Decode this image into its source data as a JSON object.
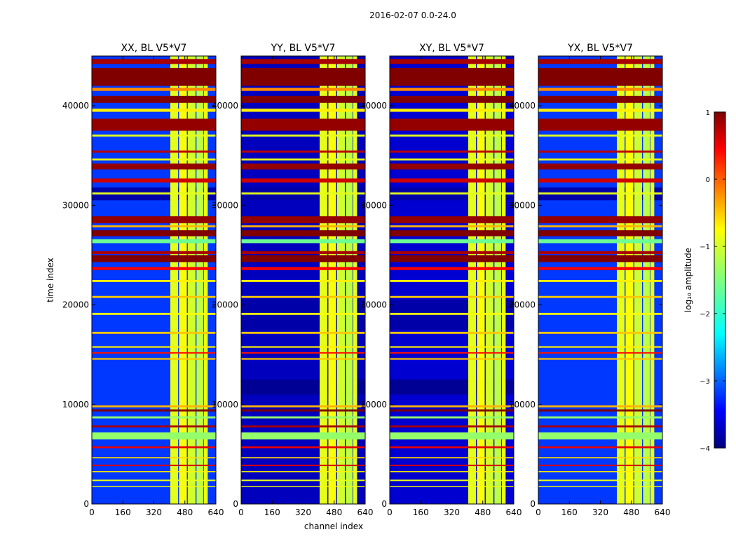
{
  "chart_data": {
    "type": "heatmap",
    "suptitle": "2016-02-07 0.0-24.0",
    "xlabel": "channel index",
    "ylabel": "time index",
    "xlim": [
      0,
      640
    ],
    "ylim": [
      0,
      45000
    ],
    "xticks": [
      0,
      160,
      320,
      480,
      640
    ],
    "yticks": [
      0,
      10000,
      20000,
      30000,
      40000
    ],
    "colorbar": {
      "label": "log₁₀ amplitude",
      "range": [
        -4,
        1
      ],
      "ticks": [
        1,
        0,
        -1,
        -2,
        -3,
        -4
      ],
      "tick_labels": [
        "1",
        "0",
        "−1",
        "−2",
        "−3",
        "−4"
      ],
      "colormap": "jet"
    },
    "panels": [
      {
        "title": "XX, BL V5*V7",
        "background_log_amp": -3.1
      },
      {
        "title": "YY, BL V5*V7",
        "background_log_amp": -3.7
      },
      {
        "title": "XY, BL V5*V7",
        "background_log_amp": -3.6
      },
      {
        "title": "YX, BL V5*V7",
        "background_log_amp": -3.1
      }
    ],
    "signal_channel_band": [
      405,
      600
    ],
    "signal_channel_columns": [
      {
        "start": 405,
        "end": 445,
        "log_amp": -1.0
      },
      {
        "start": 450,
        "end": 490,
        "log_amp": -0.9
      },
      {
        "start": 495,
        "end": 535,
        "log_amp": -1.1
      },
      {
        "start": 540,
        "end": 575,
        "log_amp": -1.2
      },
      {
        "start": 578,
        "end": 598,
        "log_amp": -1.0
      }
    ],
    "flagged_time_bands": [
      {
        "start": 44200,
        "end": 44700,
        "log_amp": 0.8
      },
      {
        "start": 42000,
        "end": 43800,
        "log_amp": 1.0
      },
      {
        "start": 41500,
        "end": 41800,
        "log_amp": -0.3
      },
      {
        "start": 40300,
        "end": 41000,
        "log_amp": 1.0
      },
      {
        "start": 39400,
        "end": 39700,
        "log_amp": -0.8
      },
      {
        "start": 37500,
        "end": 38700,
        "log_amp": 0.9
      },
      {
        "start": 36900,
        "end": 37100,
        "log_amp": -1.0
      },
      {
        "start": 35300,
        "end": 35500,
        "log_amp": 0.7
      },
      {
        "start": 34500,
        "end": 34700,
        "log_amp": -1.0
      },
      {
        "start": 33600,
        "end": 34200,
        "log_amp": 0.9
      },
      {
        "start": 32300,
        "end": 32700,
        "log_amp": 0.6
      },
      {
        "start": 31100,
        "end": 31300,
        "log_amp": -1.0
      },
      {
        "start": 28200,
        "end": 28900,
        "log_amp": 0.9
      },
      {
        "start": 27800,
        "end": 28000,
        "log_amp": -0.5
      },
      {
        "start": 26900,
        "end": 27500,
        "log_amp": 1.0
      },
      {
        "start": 26200,
        "end": 26600,
        "log_amp": -1.6
      },
      {
        "start": 25100,
        "end": 25400,
        "log_amp": 0.8
      },
      {
        "start": 24300,
        "end": 25000,
        "log_amp": 1.0
      },
      {
        "start": 23500,
        "end": 23800,
        "log_amp": 0.4
      },
      {
        "start": 22300,
        "end": 22500,
        "log_amp": -0.8
      },
      {
        "start": 20700,
        "end": 20900,
        "log_amp": -0.6
      },
      {
        "start": 19000,
        "end": 19200,
        "log_amp": -0.9
      },
      {
        "start": 17100,
        "end": 17300,
        "log_amp": -0.6
      },
      {
        "start": 15700,
        "end": 15850,
        "log_amp": -0.8
      },
      {
        "start": 15100,
        "end": 15250,
        "log_amp": 0.3
      },
      {
        "start": 14500,
        "end": 14650,
        "log_amp": -0.6
      },
      {
        "start": 9700,
        "end": 9900,
        "log_amp": -0.5
      },
      {
        "start": 9300,
        "end": 9500,
        "log_amp": 1.0
      },
      {
        "start": 8600,
        "end": 8800,
        "log_amp": -1.4
      },
      {
        "start": 7700,
        "end": 7900,
        "log_amp": 0.8
      },
      {
        "start": 6500,
        "end": 7200,
        "log_amp": -1.4
      },
      {
        "start": 5600,
        "end": 5800,
        "log_amp": 0.5
      },
      {
        "start": 4600,
        "end": 4700,
        "log_amp": -0.7
      },
      {
        "start": 3800,
        "end": 3950,
        "log_amp": 0.6
      },
      {
        "start": 3200,
        "end": 3300,
        "log_amp": -0.8
      },
      {
        "start": 2300,
        "end": 2450,
        "log_amp": -1.0
      },
      {
        "start": 1700,
        "end": 1800,
        "log_amp": -0.9
      }
    ],
    "quiet_time_bands": [
      {
        "start": 11000,
        "end": 12500,
        "log_amp": -3.9,
        "panels": [
          1,
          2
        ]
      },
      {
        "start": 17500,
        "end": 20500,
        "log_amp": -3.8,
        "panels": [
          1,
          2
        ]
      },
      {
        "start": 30500,
        "end": 31800,
        "log_amp": -3.8,
        "panels": [
          0,
          1,
          2,
          3
        ]
      }
    ]
  }
}
